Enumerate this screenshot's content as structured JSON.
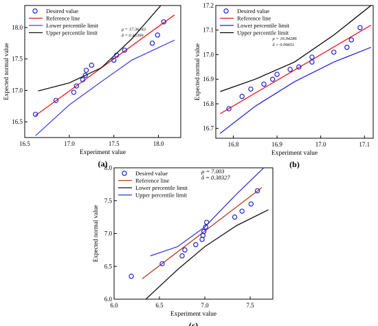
{
  "chart_data": [
    {
      "type": "scatter",
      "panel_label": "(a)",
      "xlabel": "Experiment value",
      "ylabel": "Expected normal value",
      "xlim": [
        16.5,
        18.25
      ],
      "ylim": [
        16.25,
        18.35
      ],
      "xticks": [
        16.5,
        17.0,
        17.5,
        18.0
      ],
      "xtick_labels": [
        "16.5",
        "17.0",
        "17.5",
        "18.0"
      ],
      "yticks": [
        16.5,
        17.0,
        17.5,
        18.0
      ],
      "ytick_labels": [
        "16.5",
        "17.0",
        "17.5",
        "18.0"
      ],
      "stats": [
        "μ = 17.36143",
        "δ = 0.43399"
      ],
      "legend_position": "top-left",
      "series": [
        {
          "name": "Desired value",
          "kind": "points",
          "color": "#1f1fd0",
          "x": [
            16.62,
            16.85,
            17.05,
            17.08,
            17.15,
            17.18,
            17.19,
            17.25,
            17.5,
            17.53,
            17.62,
            17.93,
            17.99,
            18.06
          ],
          "y": [
            16.62,
            16.84,
            16.97,
            17.07,
            17.17,
            17.24,
            17.32,
            17.4,
            17.48,
            17.56,
            17.64,
            17.75,
            17.88,
            18.09
          ]
        },
        {
          "name": "Reference line",
          "kind": "line",
          "color": "#e8141a",
          "x": [
            16.62,
            18.18
          ],
          "y": [
            16.6,
            18.2
          ]
        },
        {
          "name": "Lower percentile limit",
          "kind": "line",
          "color": "#4646d8",
          "x": [
            16.62,
            17.0,
            17.36,
            17.7,
            18.18
          ],
          "y": [
            16.28,
            16.77,
            17.14,
            17.48,
            17.8
          ]
        },
        {
          "name": "Upper percentile limit",
          "kind": "line",
          "color": "#111111",
          "x": [
            16.65,
            17.0,
            17.36,
            17.7,
            18.18
          ],
          "y": [
            16.99,
            17.12,
            17.36,
            17.82,
            18.6
          ]
        }
      ]
    },
    {
      "type": "scatter",
      "panel_label": "(b)",
      "xlabel": "Experiment value",
      "ylabel": "Expected normal value",
      "xlim": [
        16.76,
        17.12
      ],
      "ylim": [
        16.66,
        17.2
      ],
      "xticks": [
        16.8,
        16.9,
        17.0,
        17.1
      ],
      "xtick_labels": [
        "16.8",
        "16.9",
        "17.0",
        "17.1"
      ],
      "yticks": [
        16.7,
        16.8,
        16.9,
        17.0,
        17.1,
        17.2
      ],
      "ytick_labels": [
        "16.7",
        "16.8",
        "16.9",
        "17.0",
        "17.1",
        "17.2"
      ],
      "stats": [
        "μ = 16.94286",
        "δ = 0.09651"
      ],
      "legend_position": "top-left",
      "series": [
        {
          "name": "Desired value",
          "kind": "points",
          "color": "#1f1fd0",
          "x": [
            16.79,
            16.82,
            16.84,
            16.87,
            16.89,
            16.9,
            16.93,
            16.95,
            16.98,
            16.98,
            17.03,
            17.06,
            17.07,
            17.09
          ],
          "y": [
            16.78,
            16.83,
            16.86,
            16.88,
            16.9,
            16.92,
            16.94,
            16.95,
            16.97,
            16.99,
            17.01,
            17.03,
            17.06,
            17.11
          ]
        },
        {
          "name": "Reference line",
          "kind": "line",
          "color": "#e8141a",
          "x": [
            16.77,
            17.115
          ],
          "y": [
            16.76,
            17.12
          ]
        },
        {
          "name": "Lower percentile limit",
          "kind": "line",
          "color": "#2020e0",
          "x": [
            16.77,
            16.85,
            16.94,
            17.03,
            17.115
          ],
          "y": [
            16.68,
            16.79,
            16.89,
            16.97,
            17.03
          ]
        },
        {
          "name": "Upper percentile limit",
          "kind": "line",
          "color": "#000000",
          "x": [
            16.77,
            16.85,
            16.94,
            17.03,
            17.115
          ],
          "y": [
            16.85,
            16.9,
            16.97,
            17.08,
            17.2
          ]
        }
      ]
    },
    {
      "type": "scatter",
      "panel_label": "(c)",
      "xlabel": "Experiment value",
      "ylabel": "Expected normal value",
      "xlim": [
        6.0,
        7.75
      ],
      "ylim": [
        6.0,
        8.0
      ],
      "xticks": [
        6.0,
        6.5,
        7.0,
        7.5
      ],
      "xtick_labels": [
        "6.0",
        "6.5",
        "7.0",
        "7.5"
      ],
      "yticks": [
        6.0,
        6.5,
        7.0,
        7.5,
        8.0
      ],
      "ytick_labels": [
        "6.0",
        "6.5",
        "7.0",
        "7.5",
        "8.0"
      ],
      "stats": [
        "μ = 7.003",
        "δ = 0.38327"
      ],
      "legend_position": "top-left",
      "series": [
        {
          "name": "Desired value",
          "kind": "points",
          "color": "#1f1fd0",
          "x": [
            6.19,
            6.53,
            6.75,
            6.78,
            6.9,
            6.97,
            6.98,
            6.99,
            7.01,
            7.02,
            7.33,
            7.41,
            7.51,
            7.58
          ],
          "y": [
            6.35,
            6.54,
            6.66,
            6.75,
            6.83,
            6.91,
            6.97,
            7.03,
            7.1,
            7.17,
            7.25,
            7.34,
            7.45,
            7.65
          ]
        },
        {
          "name": "Reference line",
          "kind": "line",
          "color": "#b23a1a",
          "x": [
            6.31,
            7.63
          ],
          "y": [
            6.31,
            7.7
          ]
        },
        {
          "name": "Lower percentile limit",
          "kind": "line",
          "color": "#111111",
          "x": [
            6.35,
            6.7,
            7.0,
            7.35,
            7.7
          ],
          "y": [
            6.0,
            6.45,
            6.8,
            7.12,
            7.36
          ]
        },
        {
          "name": "Upper percentile limit",
          "kind": "line",
          "color": "#3333cc",
          "x": [
            6.4,
            6.7,
            7.0,
            7.35,
            7.65
          ],
          "y": [
            6.66,
            6.8,
            7.1,
            7.6,
            8.0
          ]
        }
      ]
    }
  ]
}
